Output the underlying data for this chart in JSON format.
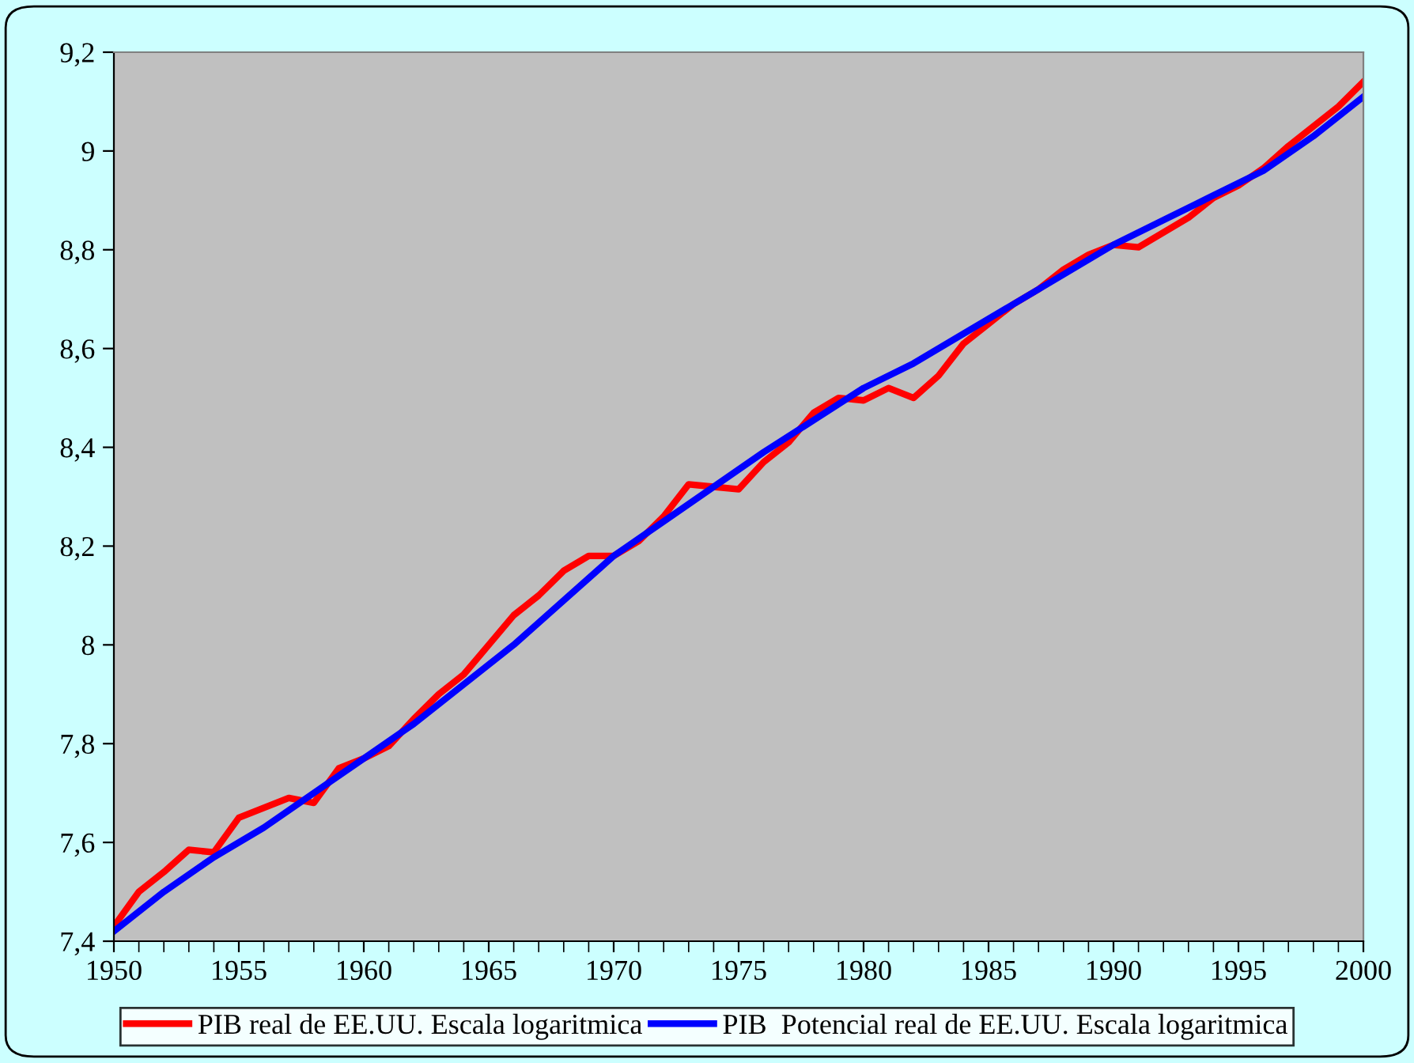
{
  "chart_data": {
    "type": "line",
    "xlim": [
      1950,
      2000
    ],
    "xticks": [
      1950,
      1955,
      1960,
      1965,
      1970,
      1975,
      1980,
      1985,
      1990,
      1995,
      2000
    ],
    "ylim": [
      7.4,
      9.2
    ],
    "yticks": [
      {
        "value": 7.4,
        "label": "7,4"
      },
      {
        "value": 7.6,
        "label": "7,6"
      },
      {
        "value": 7.8,
        "label": "7,8"
      },
      {
        "value": 8,
        "label": "8"
      },
      {
        "value": 8.2,
        "label": "8,2"
      },
      {
        "value": 8.4,
        "label": "8,4"
      },
      {
        "value": 8.6,
        "label": "8,6"
      },
      {
        "value": 8.8,
        "label": "8,8"
      },
      {
        "value": 9,
        "label": "9"
      },
      {
        "value": 9.2,
        "label": "9,2"
      }
    ],
    "grid": false,
    "legend": "bottom",
    "marker": "none",
    "line_style": "solid",
    "series": [
      {
        "name": "PIB real de EE.UU. Escala logaritmica",
        "color": "#ff0000",
        "x": [
          1950,
          1951,
          1952,
          1953,
          1954,
          1955,
          1956,
          1957,
          1958,
          1959,
          1960,
          1961,
          1962,
          1963,
          1964,
          1965,
          1966,
          1967,
          1968,
          1969,
          1970,
          1971,
          1972,
          1973,
          1974,
          1975,
          1976,
          1977,
          1978,
          1979,
          1980,
          1981,
          1982,
          1983,
          1984,
          1985,
          1986,
          1987,
          1988,
          1989,
          1990,
          1991,
          1992,
          1993,
          1994,
          1995,
          1996,
          1997,
          1998,
          1999,
          2000
        ],
        "values": [
          7.43,
          7.5,
          7.54,
          7.585,
          7.58,
          7.65,
          7.67,
          7.69,
          7.68,
          7.75,
          7.77,
          7.795,
          7.85,
          7.9,
          7.94,
          8.0,
          8.06,
          8.1,
          8.15,
          8.18,
          8.18,
          8.21,
          8.26,
          8.325,
          8.32,
          8.315,
          8.37,
          8.41,
          8.47,
          8.5,
          8.495,
          8.52,
          8.5,
          8.545,
          8.61,
          8.65,
          8.69,
          8.72,
          8.76,
          8.79,
          8.81,
          8.805,
          8.835,
          8.865,
          8.905,
          8.93,
          8.965,
          9.01,
          9.05,
          9.09,
          9.14
        ]
      },
      {
        "name": "PIB  Potencial real de EE.UU. Escala logaritmica",
        "color": "#0000ff",
        "x": [
          1950,
          1952,
          1954,
          1956,
          1958,
          1960,
          1962,
          1964,
          1966,
          1968,
          1970,
          1972,
          1974,
          1976,
          1978,
          1980,
          1982,
          1984,
          1986,
          1988,
          1990,
          1992,
          1994,
          1996,
          1998,
          2000
        ],
        "values": [
          7.42,
          7.5,
          7.57,
          7.63,
          7.7,
          7.77,
          7.84,
          7.92,
          8.0,
          8.09,
          8.18,
          8.25,
          8.32,
          8.39,
          8.455,
          8.52,
          8.57,
          8.63,
          8.69,
          8.75,
          8.81,
          8.86,
          8.91,
          8.96,
          9.03,
          9.11
        ]
      }
    ]
  }
}
